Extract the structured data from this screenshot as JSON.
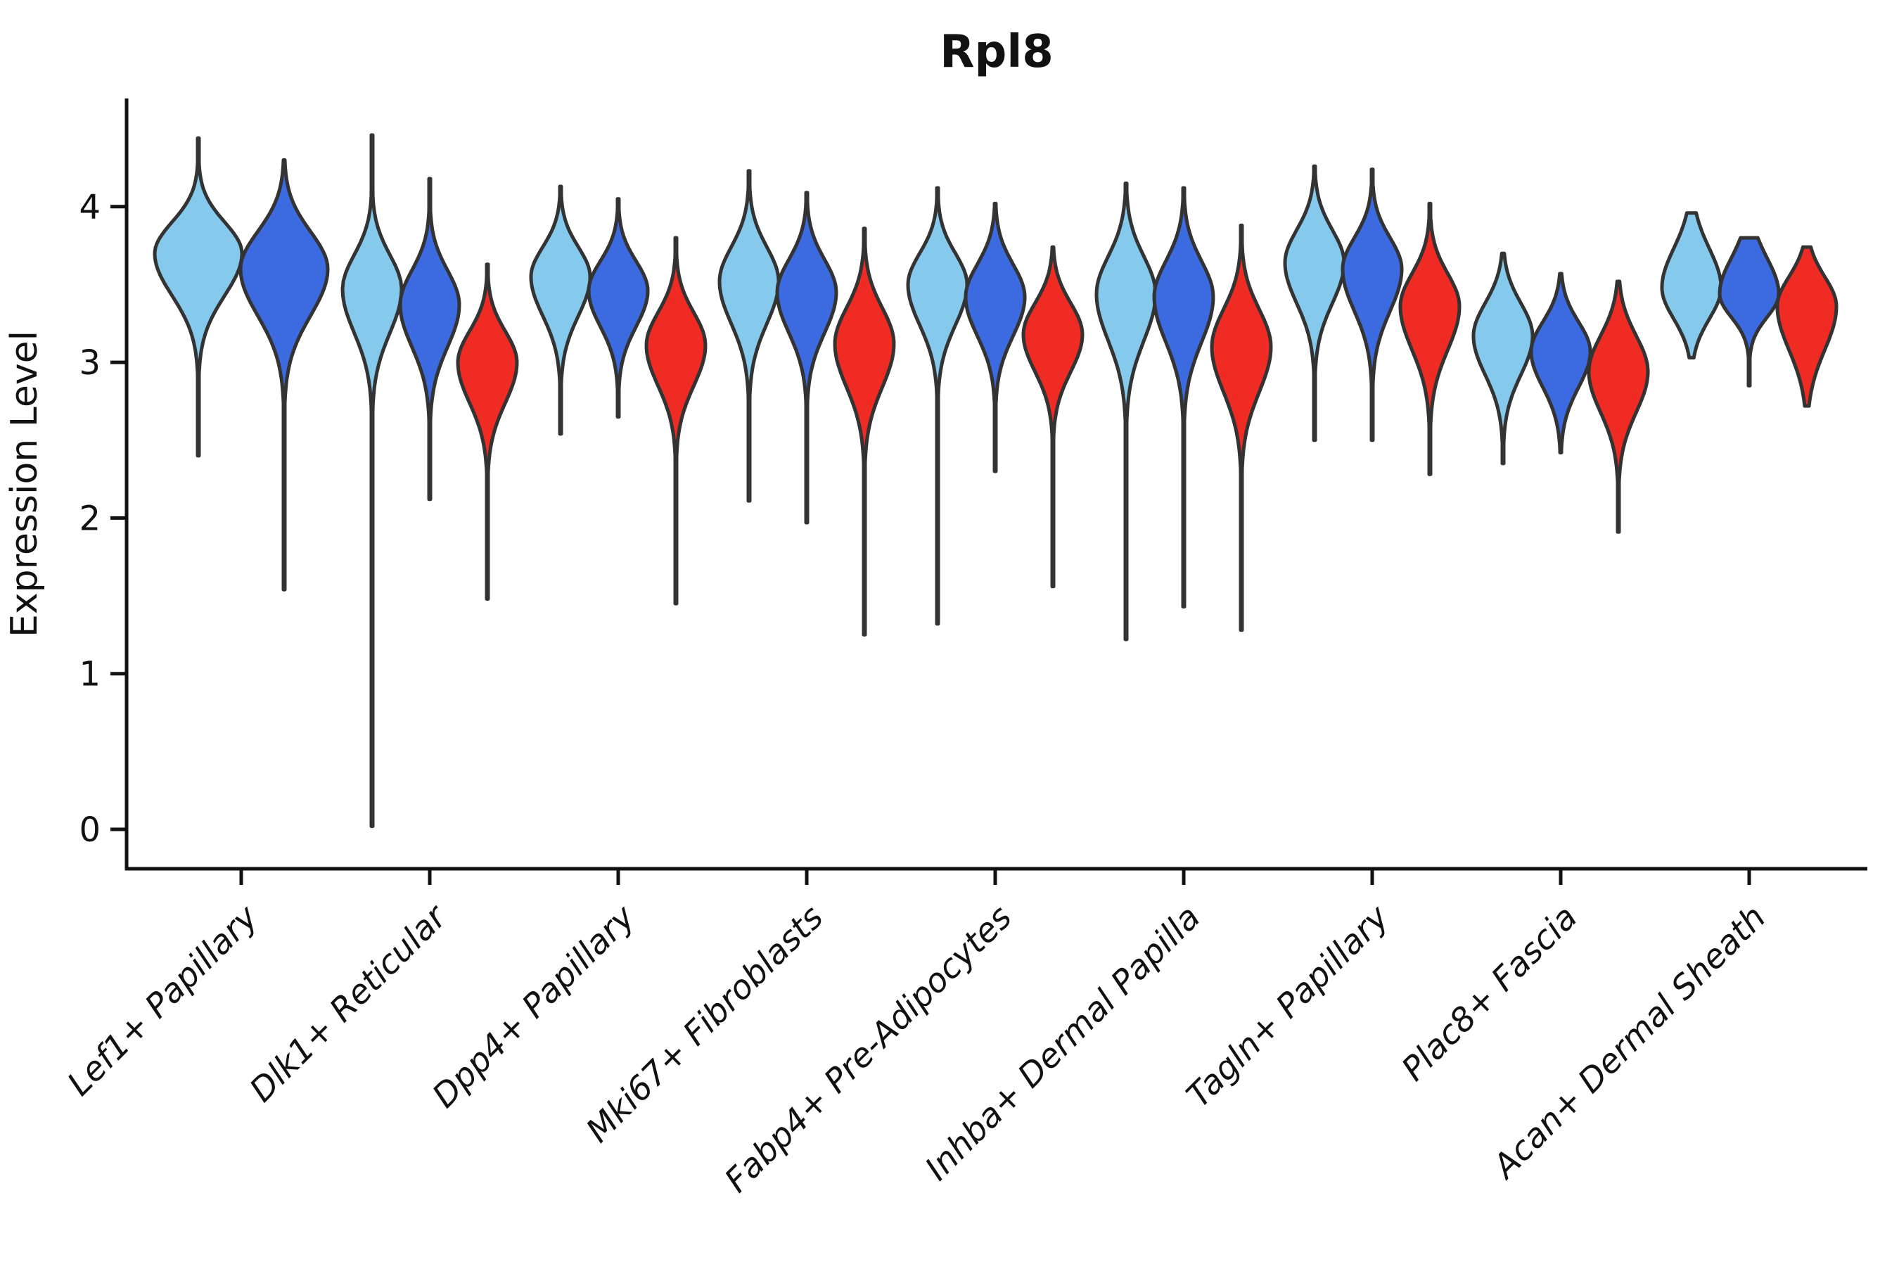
{
  "figure": {
    "title": "Rpl8",
    "ylabel": "Expression Level",
    "background": "#ffffff",
    "axis_color": "#111111"
  },
  "chart_data": {
    "type": "violin",
    "title": "Rpl8",
    "xlabel": "",
    "ylabel": "Expression Level",
    "ylim": [
      -0.25,
      4.7
    ],
    "yticks": [
      0,
      1,
      2,
      3,
      4
    ],
    "grid": false,
    "legend": "none",
    "outline_color": "#333333",
    "series": [
      {
        "id": "light-blue",
        "color": "#85C9EC"
      },
      {
        "id": "dark-blue",
        "color": "#3C6AE1"
      },
      {
        "id": "red",
        "color": "#EF2B23"
      }
    ],
    "categories": [
      "Lef1+ Papillary",
      "Dlk1+ Reticular",
      "Dpp4+ Papillary",
      "Mki67+ Fibroblasts",
      "Fabp4+ Pre-Adipocytes",
      "Inhba+ Dermal Papilla",
      "Tagln+ Papillary",
      "Plac8+ Fascia",
      "Acan+ Dermal Sheath"
    ],
    "groups": [
      {
        "category": "Lef1+ Papillary",
        "violins": [
          {
            "series": "light-blue",
            "peak": 3.7,
            "spread_up": 0.2,
            "spread_down": 0.27,
            "max": 4.44,
            "min": 2.4
          },
          {
            "series": "dark-blue",
            "peak": 3.6,
            "spread_up": 0.24,
            "spread_down": 0.3,
            "max": 4.3,
            "min": 1.54
          }
        ]
      },
      {
        "category": "Dlk1+ Reticular",
        "violins": [
          {
            "series": "light-blue",
            "peak": 3.47,
            "spread_up": 0.22,
            "spread_down": 0.28,
            "max": 4.46,
            "min": 0.02
          },
          {
            "series": "dark-blue",
            "peak": 3.37,
            "spread_up": 0.22,
            "spread_down": 0.27,
            "max": 4.18,
            "min": 2.12
          },
          {
            "series": "red",
            "peak": 3.0,
            "spread_up": 0.2,
            "spread_down": 0.26,
            "max": 3.63,
            "min": 1.48
          }
        ]
      },
      {
        "category": "Dpp4+ Papillary",
        "violins": [
          {
            "series": "light-blue",
            "peak": 3.55,
            "spread_up": 0.19,
            "spread_down": 0.25,
            "max": 4.13,
            "min": 2.54
          },
          {
            "series": "dark-blue",
            "peak": 3.46,
            "spread_up": 0.19,
            "spread_down": 0.23,
            "max": 4.05,
            "min": 2.65
          },
          {
            "series": "red",
            "peak": 3.11,
            "spread_up": 0.21,
            "spread_down": 0.26,
            "max": 3.8,
            "min": 1.45
          }
        ]
      },
      {
        "category": "Mki67+ Fibroblasts",
        "violins": [
          {
            "series": "light-blue",
            "peak": 3.52,
            "spread_up": 0.22,
            "spread_down": 0.27,
            "max": 4.23,
            "min": 2.11
          },
          {
            "series": "dark-blue",
            "peak": 3.45,
            "spread_up": 0.21,
            "spread_down": 0.26,
            "max": 4.09,
            "min": 1.97
          },
          {
            "series": "red",
            "peak": 3.12,
            "spread_up": 0.23,
            "spread_down": 0.28,
            "max": 3.86,
            "min": 1.25
          }
        ]
      },
      {
        "category": "Fabp4+ Pre-Adipocytes",
        "violins": [
          {
            "series": "light-blue",
            "peak": 3.5,
            "spread_up": 0.2,
            "spread_down": 0.26,
            "max": 4.12,
            "min": 1.32
          },
          {
            "series": "dark-blue",
            "peak": 3.42,
            "spread_up": 0.21,
            "spread_down": 0.25,
            "max": 4.02,
            "min": 2.3
          },
          {
            "series": "red",
            "peak": 3.18,
            "spread_up": 0.2,
            "spread_down": 0.24,
            "max": 3.74,
            "min": 1.56
          }
        ]
      },
      {
        "category": "Inhba+ Dermal Papilla",
        "violins": [
          {
            "series": "light-blue",
            "peak": 3.44,
            "spread_up": 0.24,
            "spread_down": 0.3,
            "max": 4.15,
            "min": 1.22
          },
          {
            "series": "dark-blue",
            "peak": 3.42,
            "spread_up": 0.23,
            "spread_down": 0.29,
            "max": 4.12,
            "min": 1.43
          },
          {
            "series": "red",
            "peak": 3.1,
            "spread_up": 0.24,
            "spread_down": 0.29,
            "max": 3.88,
            "min": 1.28
          }
        ]
      },
      {
        "category": "Tagln+ Papillary",
        "violins": [
          {
            "series": "light-blue",
            "peak": 3.64,
            "spread_up": 0.21,
            "spread_down": 0.26,
            "max": 4.26,
            "min": 2.5
          },
          {
            "series": "dark-blue",
            "peak": 3.6,
            "spread_up": 0.2,
            "spread_down": 0.27,
            "max": 4.24,
            "min": 2.5
          },
          {
            "series": "red",
            "peak": 3.36,
            "spread_up": 0.21,
            "spread_down": 0.28,
            "max": 4.02,
            "min": 2.28
          }
        ]
      },
      {
        "category": "Plac8+ Fascia",
        "violins": [
          {
            "series": "light-blue",
            "peak": 3.17,
            "spread_up": 0.21,
            "spread_down": 0.25,
            "max": 3.7,
            "min": 2.35
          },
          {
            "series": "dark-blue",
            "peak": 3.07,
            "spread_up": 0.19,
            "spread_down": 0.23,
            "max": 3.57,
            "min": 2.42
          },
          {
            "series": "red",
            "peak": 2.94,
            "spread_up": 0.23,
            "spread_down": 0.26,
            "max": 3.52,
            "min": 1.91
          }
        ]
      },
      {
        "category": "Acan+ Dermal Sheath",
        "violins": [
          {
            "series": "light-blue",
            "peak": 3.48,
            "spread_up": 0.25,
            "spread_down": 0.2,
            "max": 3.96,
            "min": 3.03
          },
          {
            "series": "dark-blue",
            "peak": 3.44,
            "spread_up": 0.23,
            "spread_down": 0.15,
            "max": 3.8,
            "min": 2.85
          },
          {
            "series": "red",
            "peak": 3.36,
            "spread_up": 0.19,
            "spread_down": 0.28,
            "max": 3.74,
            "min": 2.72
          }
        ]
      }
    ]
  }
}
